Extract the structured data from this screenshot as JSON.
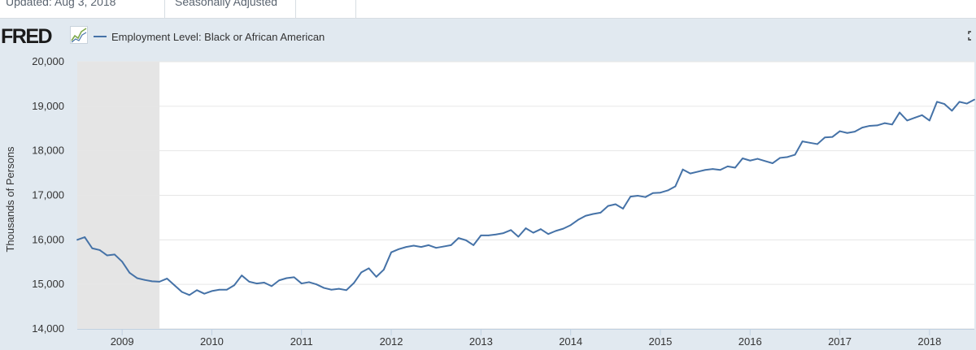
{
  "header": {
    "updated": "Updated: Aug 3, 2018",
    "adjustment": "Seasonally Adjusted"
  },
  "logo": {
    "text": "FRED",
    "icon": "trend-line-icon"
  },
  "fullscreen_icon": "expand-icon",
  "colors": {
    "series": "#4572a7",
    "recession": "#e5e5e5",
    "panel": "#e1e9f0",
    "grid": "#e6e6e6"
  },
  "chart_data": {
    "type": "line",
    "title": "",
    "ylabel": "Thousands of Persons",
    "xlabel": "",
    "ylim": [
      14000,
      20000
    ],
    "xlim": [
      "2008-07",
      "2018-07"
    ],
    "y_ticks": [
      14000,
      15000,
      16000,
      17000,
      18000,
      19000,
      20000
    ],
    "y_tick_labels": [
      "14,000",
      "15,000",
      "16,000",
      "17,000",
      "18,000",
      "19,000",
      "20,000"
    ],
    "x_tick_labels": [
      "2009",
      "2010",
      "2011",
      "2012",
      "2013",
      "2014",
      "2015",
      "2016",
      "2017",
      "2018"
    ],
    "x_tick_dates": [
      "2009-01",
      "2010-01",
      "2011-01",
      "2012-01",
      "2013-01",
      "2014-01",
      "2015-01",
      "2016-01",
      "2017-01",
      "2018-01"
    ],
    "recession_shading": {
      "start": "2008-07",
      "end": "2009-06"
    },
    "grid": true,
    "legend_position": "top-left",
    "series": [
      {
        "name": "Employment Level: Black or African American",
        "x": [
          "2008-07",
          "2008-08",
          "2008-09",
          "2008-10",
          "2008-11",
          "2008-12",
          "2009-01",
          "2009-02",
          "2009-03",
          "2009-04",
          "2009-05",
          "2009-06",
          "2009-07",
          "2009-08",
          "2009-09",
          "2009-10",
          "2009-11",
          "2009-12",
          "2010-01",
          "2010-02",
          "2010-03",
          "2010-04",
          "2010-05",
          "2010-06",
          "2010-07",
          "2010-08",
          "2010-09",
          "2010-10",
          "2010-11",
          "2010-12",
          "2011-01",
          "2011-02",
          "2011-03",
          "2011-04",
          "2011-05",
          "2011-06",
          "2011-07",
          "2011-08",
          "2011-09",
          "2011-10",
          "2011-11",
          "2011-12",
          "2012-01",
          "2012-02",
          "2012-03",
          "2012-04",
          "2012-05",
          "2012-06",
          "2012-07",
          "2012-08",
          "2012-09",
          "2012-10",
          "2012-11",
          "2012-12",
          "2013-01",
          "2013-02",
          "2013-03",
          "2013-04",
          "2013-05",
          "2013-06",
          "2013-07",
          "2013-08",
          "2013-09",
          "2013-10",
          "2013-11",
          "2013-12",
          "2014-01",
          "2014-02",
          "2014-03",
          "2014-04",
          "2014-05",
          "2014-06",
          "2014-07",
          "2014-08",
          "2014-09",
          "2014-10",
          "2014-11",
          "2014-12",
          "2015-01",
          "2015-02",
          "2015-03",
          "2015-04",
          "2015-05",
          "2015-06",
          "2015-07",
          "2015-08",
          "2015-09",
          "2015-10",
          "2015-11",
          "2015-12",
          "2016-01",
          "2016-02",
          "2016-03",
          "2016-04",
          "2016-05",
          "2016-06",
          "2016-07",
          "2016-08",
          "2016-09",
          "2016-10",
          "2016-11",
          "2016-12",
          "2017-01",
          "2017-02",
          "2017-03",
          "2017-04",
          "2017-05",
          "2017-06",
          "2017-07",
          "2017-08",
          "2017-09",
          "2017-10",
          "2017-11",
          "2017-12",
          "2018-01",
          "2018-02",
          "2018-03",
          "2018-04",
          "2018-05",
          "2018-06",
          "2018-07"
        ],
        "values": [
          16000,
          16060,
          15810,
          15770,
          15650,
          15670,
          15510,
          15260,
          15140,
          15100,
          15070,
          15060,
          15130,
          14980,
          14830,
          14760,
          14870,
          14790,
          14850,
          14880,
          14880,
          14980,
          15200,
          15060,
          15020,
          15040,
          14960,
          15090,
          15140,
          15160,
          15020,
          15050,
          15000,
          14920,
          14880,
          14900,
          14870,
          15030,
          15270,
          15360,
          15170,
          15330,
          15720,
          15790,
          15840,
          15870,
          15840,
          15880,
          15820,
          15850,
          15880,
          16040,
          15990,
          15880,
          16100,
          16100,
          16120,
          16150,
          16220,
          16070,
          16260,
          16160,
          16240,
          16130,
          16200,
          16250,
          16330,
          16450,
          16540,
          16580,
          16610,
          16760,
          16800,
          16700,
          16970,
          16990,
          16960,
          17050,
          17060,
          17110,
          17200,
          17580,
          17490,
          17530,
          17570,
          17590,
          17570,
          17650,
          17620,
          17830,
          17780,
          17820,
          17770,
          17720,
          17840,
          17860,
          17910,
          18210,
          18180,
          18150,
          18300,
          18310,
          18440,
          18400,
          18430,
          18520,
          18560,
          18570,
          18620,
          18590,
          18860,
          18680,
          18740,
          18800,
          18680,
          19100,
          19050,
          18900,
          19100,
          19060,
          19150
        ]
      }
    ]
  }
}
